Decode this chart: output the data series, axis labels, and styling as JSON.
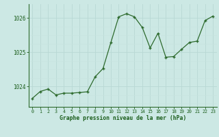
{
  "x": [
    0,
    1,
    2,
    3,
    4,
    5,
    6,
    7,
    8,
    9,
    10,
    11,
    12,
    13,
    14,
    15,
    16,
    17,
    18,
    19,
    20,
    21,
    22,
    23
  ],
  "y": [
    1023.65,
    1023.85,
    1023.92,
    1023.75,
    1023.8,
    1023.8,
    1023.82,
    1023.84,
    1024.28,
    1024.52,
    1025.28,
    1026.03,
    1026.12,
    1026.03,
    1025.72,
    1025.12,
    1025.55,
    1024.85,
    1024.87,
    1025.08,
    1025.28,
    1025.32,
    1025.92,
    1026.05
  ],
  "line_color": "#2d6a2d",
  "marker_color": "#2d6a2d",
  "bg_color": "#cce8e4",
  "grid_major_color": "#b8d8d4",
  "grid_minor_color": "#c8e4e0",
  "axis_color": "#2d6a2d",
  "label_color": "#1a5c1a",
  "xlabel": "Graphe pression niveau de la mer (hPa)",
  "ylim": [
    1023.4,
    1026.4
  ],
  "yticks": [
    1024,
    1025,
    1026
  ],
  "xtick_labels": [
    "0",
    "1",
    "2",
    "3",
    "4",
    "5",
    "6",
    "7",
    "8",
    "9",
    "10",
    "11",
    "12",
    "13",
    "14",
    "15",
    "16",
    "17",
    "18",
    "19",
    "20",
    "21",
    "22",
    "23"
  ],
  "figsize": [
    3.2,
    2.0
  ],
  "dpi": 100
}
